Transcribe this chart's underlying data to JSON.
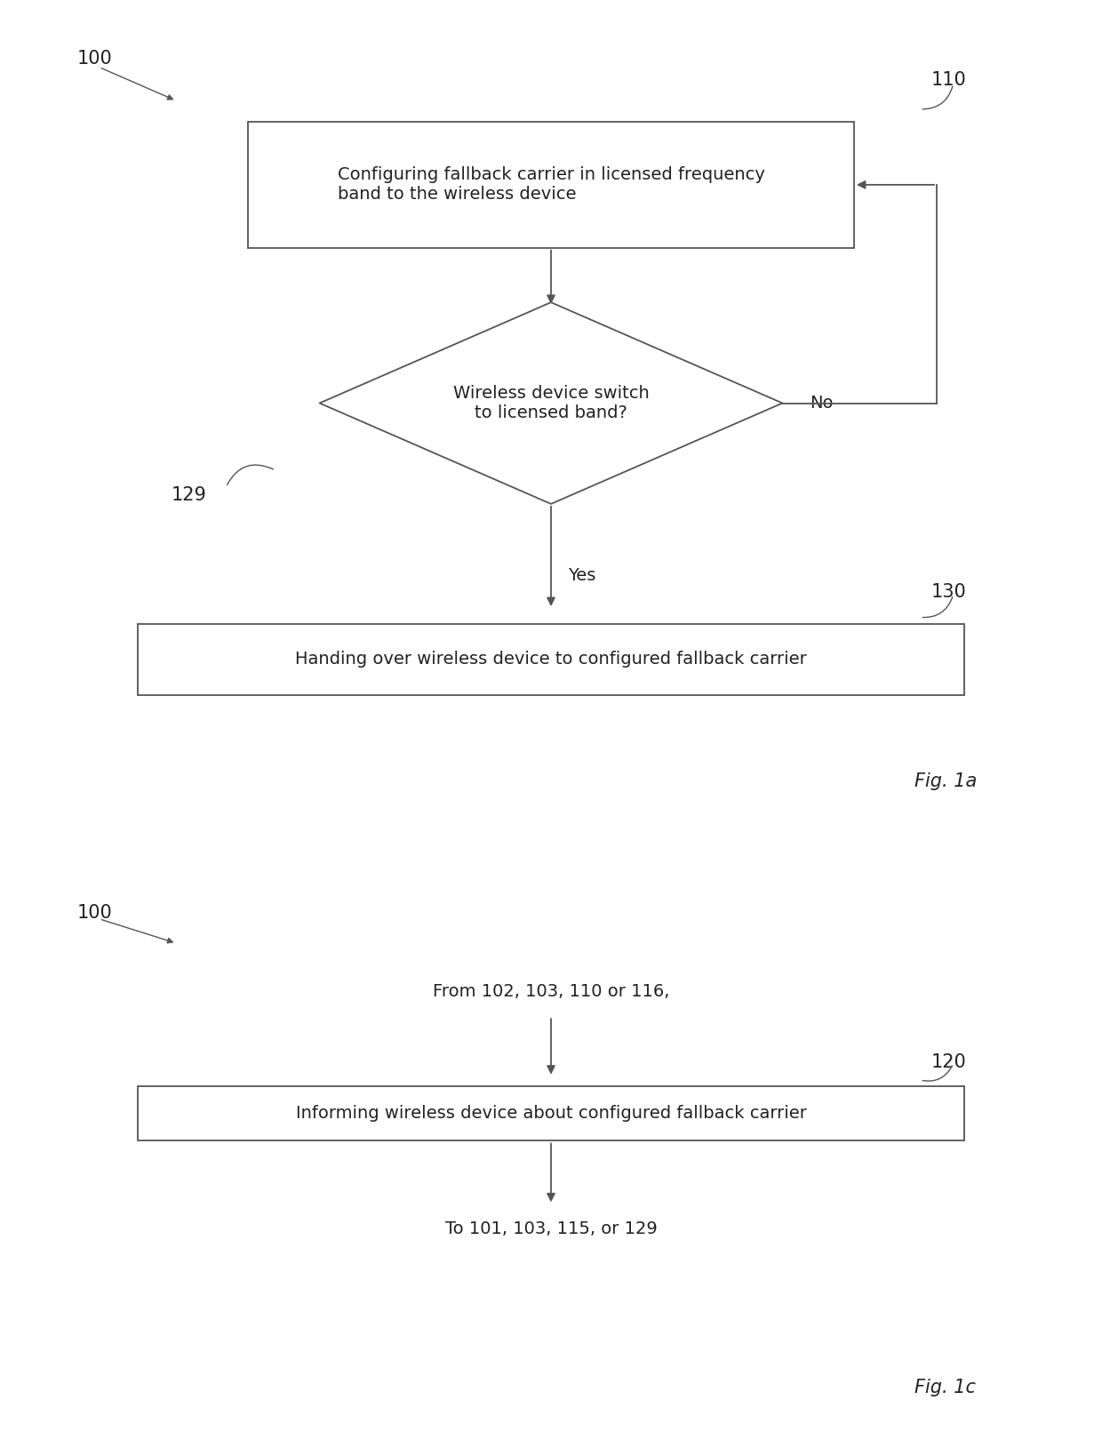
{
  "bg_color": "#ffffff",
  "line_color": "#555555",
  "text_color": "#222222",
  "lw": 1.3,
  "font_size": 14,
  "label_font_size": 15,
  "fig1a": {
    "ref_label": "100",
    "box110_text": "Configuring fallback carrier in licensed frequency\nband to the wireless device",
    "box110_label": "110",
    "diamond_text": "Wireless device switch\nto licensed band?",
    "diamond_label": "129",
    "box130_text": "Handing over wireless device to configured fallback carrier",
    "box130_label": "130",
    "no_text": "No",
    "yes_text": "Yes",
    "fig_label": "Fig. 1a"
  },
  "fig1c": {
    "ref_label": "100",
    "from_text": "From 102, 103, 110 or 116,",
    "box120_text": "Informing wireless device about configured fallback carrier",
    "box120_label": "120",
    "to_text": "To 101, 103, 115, or 129",
    "fig_label": "Fig. 1c"
  }
}
